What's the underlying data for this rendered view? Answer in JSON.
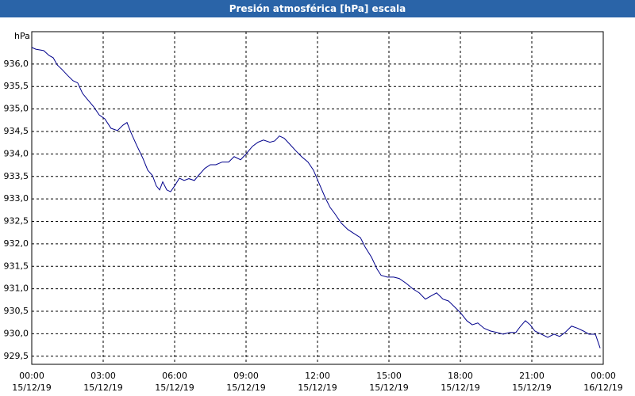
{
  "chart_data": {
    "type": "line",
    "title": "Presión atmosférica [hPa] escala",
    "y_label": "hPa",
    "color": "#00008b",
    "grid": true,
    "x": [
      0,
      0.17,
      0.5,
      0.73,
      0.9,
      1.07,
      1.27,
      1.5,
      1.73,
      1.93,
      2.13,
      2.33,
      2.6,
      2.83,
      3.07,
      3.33,
      3.6,
      3.83,
      4,
      4.17,
      4.4,
      4.67,
      4.87,
      5.07,
      5.23,
      5.37,
      5.5,
      5.67,
      5.83,
      6,
      6.2,
      6.4,
      6.6,
      6.83,
      7,
      7.27,
      7.5,
      7.73,
      8,
      8.27,
      8.5,
      8.77,
      9,
      9.27,
      9.5,
      9.73,
      10,
      10.2,
      10.4,
      10.6,
      10.83,
      11.07,
      11.33,
      11.6,
      11.83,
      12.07,
      12.33,
      12.53,
      12.73,
      13,
      13.27,
      13.53,
      13.8,
      14,
      14.27,
      14.5,
      14.67,
      14.93,
      15.2,
      15.43,
      15.73,
      16,
      16.27,
      16.53,
      16.73,
      17,
      17.27,
      17.5,
      17.73,
      18,
      18.27,
      18.5,
      18.73,
      19,
      19.27,
      19.53,
      19.8,
      20.07,
      20.33,
      20.53,
      20.73,
      20.93,
      21.13,
      21.4,
      21.67,
      21.93,
      22.17,
      22.4,
      22.67,
      22.93,
      23.17,
      23.4,
      23.67,
      23.87
    ],
    "values": [
      936.37,
      936.33,
      936.3,
      936.19,
      936.14,
      935.98,
      935.88,
      935.75,
      935.63,
      935.58,
      935.35,
      935.22,
      935.05,
      934.87,
      934.78,
      934.57,
      934.52,
      934.64,
      934.7,
      934.47,
      934.2,
      933.9,
      933.64,
      933.52,
      933.29,
      933.2,
      933.38,
      933.2,
      933.16,
      933.29,
      933.46,
      933.41,
      933.45,
      933.41,
      933.52,
      933.68,
      933.76,
      933.76,
      933.82,
      933.82,
      933.94,
      933.87,
      934.0,
      934.17,
      934.26,
      934.31,
      934.26,
      934.29,
      934.4,
      934.35,
      934.22,
      934.08,
      933.94,
      933.82,
      933.64,
      933.34,
      933.02,
      932.81,
      932.67,
      932.46,
      932.32,
      932.23,
      932.14,
      931.93,
      931.7,
      931.44,
      931.3,
      931.26,
      931.26,
      931.23,
      931.12,
      931.0,
      930.91,
      930.77,
      930.83,
      930.91,
      930.77,
      930.73,
      930.61,
      930.47,
      930.29,
      930.2,
      930.24,
      930.12,
      930.06,
      930.03,
      929.99,
      930.03,
      930.03,
      930.17,
      930.29,
      930.2,
      930.06,
      929.99,
      929.92,
      929.99,
      929.94,
      930.03,
      930.17,
      930.12,
      930.06,
      929.99,
      929.99,
      929.68
    ],
    "xlim": [
      0,
      24
    ],
    "xticks": [
      {
        "value": 0,
        "label": [
          "00:00",
          "15/12/19"
        ]
      },
      {
        "value": 3,
        "label": [
          "03:00",
          "15/12/19"
        ]
      },
      {
        "value": 6,
        "label": [
          "06:00",
          "15/12/19"
        ]
      },
      {
        "value": 9,
        "label": [
          "09:00",
          "15/12/19"
        ]
      },
      {
        "value": 12,
        "label": [
          "12:00",
          "15/12/19"
        ]
      },
      {
        "value": 15,
        "label": [
          "15:00",
          "15/12/19"
        ]
      },
      {
        "value": 18,
        "label": [
          "18:00",
          "15/12/19"
        ]
      },
      {
        "value": 21,
        "label": [
          "21:00",
          "15/12/19"
        ]
      },
      {
        "value": 24,
        "label": [
          "00:00",
          "16/12/19"
        ]
      }
    ],
    "ylim": [
      929.32,
      936.72
    ],
    "yticks": [
      {
        "value": 929.5,
        "label": "929,5"
      },
      {
        "value": 930,
        "label": "930,0"
      },
      {
        "value": 930.5,
        "label": "930,5"
      },
      {
        "value": 931,
        "label": "931,0"
      },
      {
        "value": 931.5,
        "label": "931,5"
      },
      {
        "value": 932,
        "label": "932,0"
      },
      {
        "value": 932.5,
        "label": "932,5"
      },
      {
        "value": 933,
        "label": "933,0"
      },
      {
        "value": 933.5,
        "label": "933,5"
      },
      {
        "value": 934,
        "label": "934,0"
      },
      {
        "value": 934.5,
        "label": "934,5"
      },
      {
        "value": 935,
        "label": "935,0"
      },
      {
        "value": 935.5,
        "label": "935,5"
      },
      {
        "value": 936,
        "label": "936,0"
      }
    ]
  }
}
